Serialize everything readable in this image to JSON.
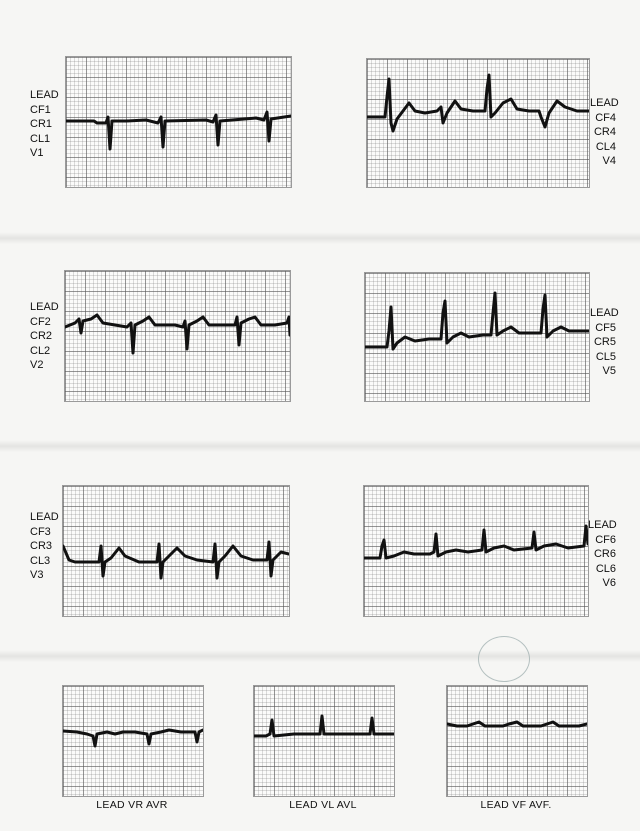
{
  "leads": [
    {
      "id": "v1",
      "lines": [
        "LEAD",
        "CF1",
        "CR1",
        "CL1",
        "V1"
      ]
    },
    {
      "id": "v2",
      "lines": [
        "LEAD",
        "CF2",
        "CR2",
        "CL2",
        "V2"
      ]
    },
    {
      "id": "v3",
      "lines": [
        "LEAD",
        "CF3",
        "CR3",
        "CL3",
        "V3"
      ]
    },
    {
      "id": "v4",
      "lines": [
        "LEAD",
        "CF4",
        "CR4",
        "CL4",
        "V4"
      ]
    },
    {
      "id": "v5",
      "lines": [
        "LEAD",
        "CF5",
        "CR5",
        "CL5",
        "V5"
      ]
    },
    {
      "id": "v6",
      "lines": [
        "LEAD",
        "CF6",
        "CR6",
        "CL6",
        "V6"
      ]
    }
  ],
  "captions": {
    "vr": "LEAD VR  AVR",
    "vl": "LEAD VL  AVL",
    "vf": "LEAD VF  AVF."
  },
  "stamp_text": ""
}
